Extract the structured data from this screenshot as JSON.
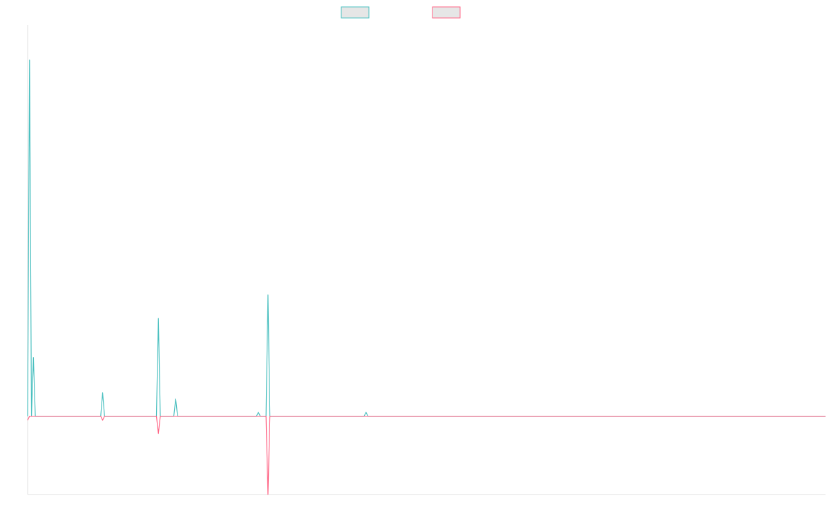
{
  "chart_data": {
    "type": "line",
    "title": "",
    "xlabel": "",
    "ylabel": "",
    "legend_position": "top-center",
    "grid": false,
    "point_count": 416,
    "ylim": [
      -100,
      500
    ],
    "series": [
      {
        "name": "",
        "color": "#4bc0c0",
        "fill": "#e6e6e6",
        "points": [
          [
            0,
            0
          ],
          [
            1,
            455
          ],
          [
            2,
            0
          ],
          [
            3,
            75
          ],
          [
            4,
            0
          ],
          [
            38,
            0
          ],
          [
            39,
            30
          ],
          [
            40,
            0
          ],
          [
            67,
            0
          ],
          [
            68,
            125
          ],
          [
            69,
            0
          ],
          [
            76,
            0
          ],
          [
            77,
            22
          ],
          [
            78,
            0
          ],
          [
            119,
            0
          ],
          [
            120,
            5
          ],
          [
            121,
            0
          ],
          [
            124,
            0
          ],
          [
            125,
            155
          ],
          [
            126,
            0
          ],
          [
            175,
            0
          ],
          [
            176,
            5
          ],
          [
            177,
            0
          ],
          [
            415,
            0
          ]
        ]
      },
      {
        "name": "",
        "color": "#ff6384",
        "fill": "#e6e6e6",
        "points": [
          [
            0,
            -5
          ],
          [
            1,
            0
          ],
          [
            38,
            0
          ],
          [
            39,
            -5
          ],
          [
            40,
            0
          ],
          [
            67,
            0
          ],
          [
            68,
            -22
          ],
          [
            69,
            0
          ],
          [
            124,
            0
          ],
          [
            125,
            -100
          ],
          [
            126,
            0
          ],
          [
            415,
            0
          ]
        ]
      }
    ]
  }
}
